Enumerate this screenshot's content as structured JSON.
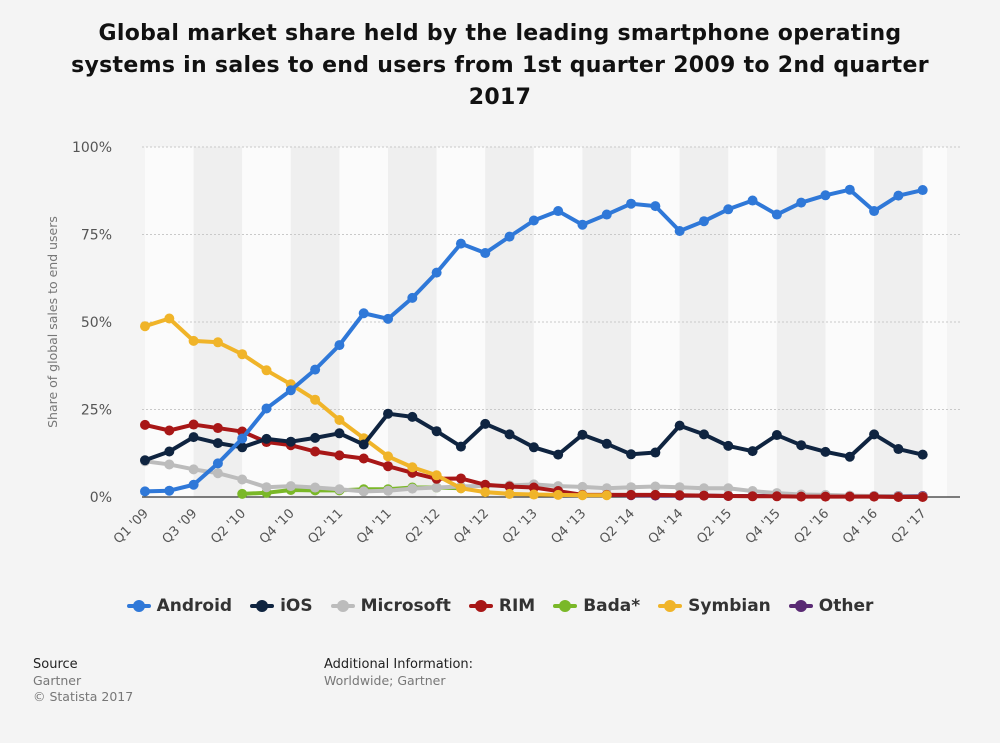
{
  "title": "Global market share held by the leading smartphone operating systems in sales to end users from 1st quarter 2009 to 2nd quarter 2017",
  "footer": {
    "source_heading": "Source",
    "source_name": "Gartner",
    "copyright": "© Statista 2017",
    "info_heading": "Additional Information:",
    "info_text": "Worldwide; Gartner"
  },
  "chart_data": {
    "type": "line",
    "title": "Global market share held by the leading smartphone operating systems in sales to end users from 1st quarter 2009 to 2nd quarter 2017",
    "xlabel": "",
    "ylabel": "Share of global sales to end users",
    "ylim": [
      0,
      100
    ],
    "yticks": [
      "0%",
      "25%",
      "50%",
      "75%",
      "100%"
    ],
    "grid": true,
    "legend_position": "bottom",
    "x": [
      "Q1 '09",
      "Q2 '09",
      "Q3 '09",
      "Q4 '09",
      "Q1 '10",
      "Q2 '10",
      "Q3 '10",
      "Q4 '10",
      "Q1 '11",
      "Q2 '11",
      "Q3 '11",
      "Q4 '11",
      "Q1 '12",
      "Q2 '12",
      "Q3 '12",
      "Q4 '12",
      "Q1 '13",
      "Q2 '13",
      "Q3 '13",
      "Q4 '13",
      "Q1 '14",
      "Q2 '14",
      "Q3 '14",
      "Q4 '14",
      "Q1 '15",
      "Q2 '15",
      "Q3 '15",
      "Q4 '15",
      "Q1 '16",
      "Q2 '16",
      "Q3 '16",
      "Q4 '16",
      "Q1 '17",
      "Q2 '17"
    ],
    "x_tick_labels": [
      "Q1 '09",
      "Q3 '09",
      "Q2 '10",
      "Q4 '10",
      "Q2 '11",
      "Q4 '11",
      "Q2 '12",
      "Q4 '12",
      "Q2 '13",
      "Q4 '13",
      "Q2 '14",
      "Q4 '14",
      "Q2 '15",
      "Q4 '15",
      "Q2 '16",
      "Q4 '16",
      "Q2 '17"
    ],
    "series": [
      {
        "name": "Android",
        "color": "#2f78d8",
        "values": [
          1.6,
          1.8,
          3.5,
          9.6,
          16.7,
          25.3,
          30.5,
          36.4,
          43.4,
          52.5,
          50.9,
          56.9,
          64.1,
          72.4,
          69.7,
          74.4,
          79.0,
          81.7,
          77.8,
          80.7,
          83.8,
          83.1,
          76.0,
          78.8,
          82.2,
          84.7,
          80.7,
          84.1,
          86.2,
          87.8,
          81.7,
          86.1,
          87.7,
          null
        ]
      },
      {
        "name": "iOS",
        "color": "#0f2440",
        "values": [
          10.5,
          13.0,
          17.1,
          15.4,
          14.2,
          16.6,
          15.8,
          16.9,
          18.2,
          15.0,
          23.8,
          22.9,
          18.8,
          14.4,
          20.9,
          17.9,
          14.2,
          12.1,
          17.8,
          15.2,
          12.2,
          12.7,
          20.4,
          17.9,
          14.6,
          13.1,
          17.7,
          14.8,
          12.9,
          11.5,
          17.9,
          13.7,
          12.1,
          null
        ]
      },
      {
        "name": "Microsoft",
        "color": "#bcbcbc",
        "values": [
          10.2,
          9.3,
          7.9,
          6.8,
          5.0,
          2.8,
          3.1,
          2.7,
          2.2,
          1.6,
          1.8,
          2.4,
          2.7,
          3.0,
          3.2,
          3.3,
          3.6,
          3.1,
          2.9,
          2.5,
          2.8,
          3.0,
          2.8,
          2.5,
          2.5,
          1.7,
          1.1,
          0.7,
          0.6,
          0.4,
          0.3,
          0.2,
          0.1,
          null
        ]
      },
      {
        "name": "RIM",
        "color": "#a81717",
        "values": [
          20.6,
          19.0,
          20.7,
          19.7,
          18.7,
          15.7,
          14.8,
          13.0,
          11.9,
          11.0,
          8.8,
          6.9,
          5.2,
          5.3,
          3.5,
          3.0,
          2.7,
          1.7,
          0.6,
          0.6,
          0.6,
          0.6,
          0.5,
          0.4,
          0.3,
          0.2,
          0.2,
          0.1,
          0.1,
          0.1,
          0.1,
          0.0,
          0.0,
          null
        ]
      },
      {
        "name": "Bada*",
        "color": "#7ab828",
        "values": [
          null,
          null,
          null,
          null,
          0.9,
          1.2,
          2.0,
          1.9,
          1.9,
          2.2,
          2.2,
          2.7,
          2.7,
          2.5,
          null,
          null,
          null,
          null,
          null,
          null,
          null,
          null,
          null,
          null,
          null,
          null,
          null,
          null,
          null,
          null,
          null,
          null,
          null,
          null
        ]
      },
      {
        "name": "Symbian",
        "color": "#f0b429",
        "values": [
          48.8,
          51.0,
          44.6,
          44.2,
          40.8,
          36.2,
          32.2,
          27.8,
          22.0,
          16.8,
          11.6,
          8.5,
          6.2,
          2.5,
          1.4,
          0.9,
          0.7,
          0.6,
          0.5,
          0.5,
          null,
          null,
          null,
          null,
          null,
          null,
          null,
          null,
          null,
          null,
          null,
          null,
          null,
          null
        ]
      },
      {
        "name": "Other",
        "color": "#5a2a74",
        "values": [
          null,
          null,
          null,
          null,
          null,
          null,
          null,
          null,
          null,
          null,
          null,
          null,
          null,
          null,
          null,
          null,
          null,
          null,
          null,
          0.6,
          0.5,
          0.4,
          0.4,
          0.4,
          0.3,
          0.3,
          0.3,
          0.3,
          0.3,
          0.3,
          0.3,
          0.3,
          0.3,
          null
        ]
      }
    ]
  }
}
